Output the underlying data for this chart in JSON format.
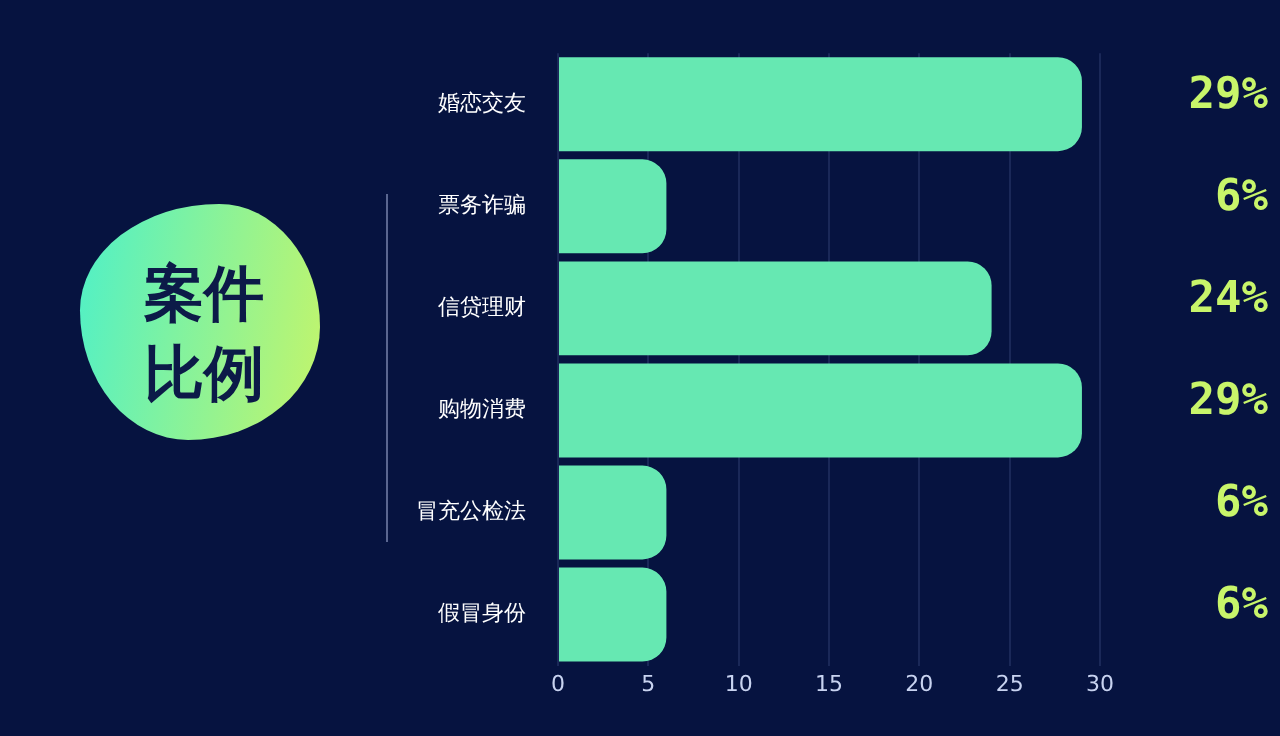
{
  "chart_data": {
    "type": "bar",
    "orientation": "horizontal",
    "title": "案件比例",
    "categories": [
      "婚恋交友",
      "票务诈骗",
      "信贷理财",
      "购物消费",
      "冒充公检法",
      "假冒身份"
    ],
    "values": [
      29,
      6,
      24,
      29,
      6,
      6
    ],
    "value_labels": [
      "29%",
      "6%",
      "24%",
      "29%",
      "6%",
      "6%"
    ],
    "color": "#66e8b2",
    "xlim": [
      0,
      30
    ],
    "xticks": [
      0,
      5,
      10,
      15,
      20,
      25,
      30
    ],
    "grid": "x"
  }
}
